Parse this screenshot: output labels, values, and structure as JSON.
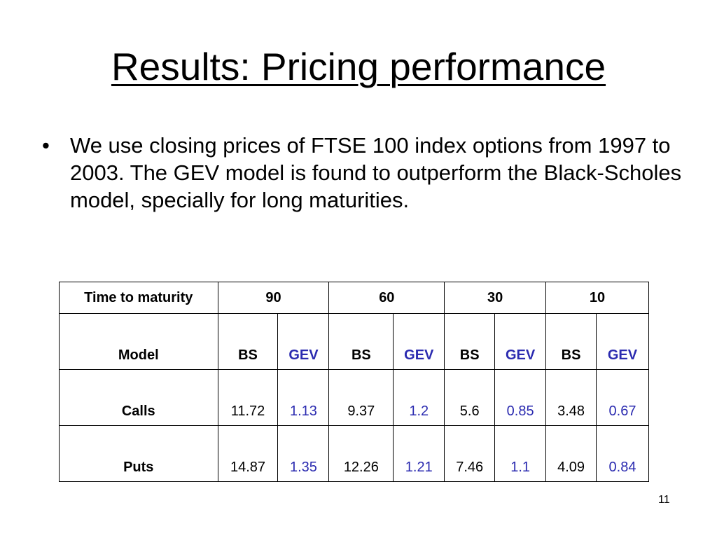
{
  "slide": {
    "title": "Results: Pricing performance",
    "bullet_symbol": "•",
    "bullet_text": "We use closing prices of FTSE 100 index options from 1997 to 2003. The GEV model is found to outperform the Black-Scholes model, specially for long maturities.",
    "page_number": "11"
  },
  "table": {
    "header_label": "Time to maturity",
    "maturities": [
      "90",
      "60",
      "30",
      "10"
    ],
    "model_label": "Model",
    "models": [
      "BS",
      "GEV",
      "BS",
      "GEV",
      "BS",
      "GEV",
      "BS",
      "GEV"
    ],
    "rows": [
      {
        "label": "Calls",
        "values": [
          "11.72",
          "1.13",
          "9.37",
          "1.2",
          "5.6",
          "0.85",
          "3.48",
          "0.67"
        ]
      },
      {
        "label": "Puts",
        "values": [
          "14.87",
          "1.35",
          "12.26",
          "1.21",
          "7.46",
          "1.1",
          "4.09",
          "0.84"
        ]
      }
    ]
  },
  "colors": {
    "gev_text": "#2b2bb0",
    "text": "#000000",
    "background": "#ffffff"
  }
}
